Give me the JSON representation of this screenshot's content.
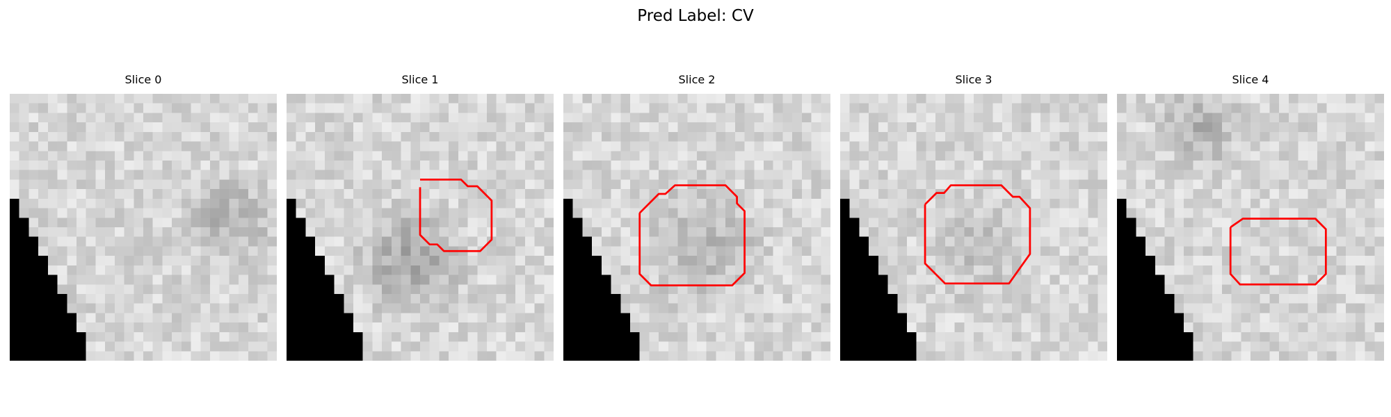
{
  "figure": {
    "title": "Pred Label: CV"
  },
  "colors": {
    "contour": "#ff0000",
    "mask": "#000000"
  },
  "grid_size": 28,
  "panels": [
    {
      "title": "Slice 0",
      "contour": false,
      "seed": 11,
      "darkblob": [
        0.8,
        0.45,
        0.22,
        40
      ]
    },
    {
      "title": "Slice 1",
      "contour": true,
      "seed": 23,
      "darkblob": [
        0.45,
        0.6,
        0.25,
        55
      ]
    },
    {
      "title": "Slice 2",
      "contour": true,
      "seed": 37,
      "darkblob": [
        0.5,
        0.55,
        0.28,
        35
      ]
    },
    {
      "title": "Slice 3",
      "contour": true,
      "seed": 41,
      "darkblob": [
        0.5,
        0.55,
        0.25,
        25
      ]
    },
    {
      "title": "Slice 4",
      "contour": true,
      "seed": 53,
      "darkblob": [
        0.3,
        0.1,
        0.2,
        40
      ]
    }
  ]
}
